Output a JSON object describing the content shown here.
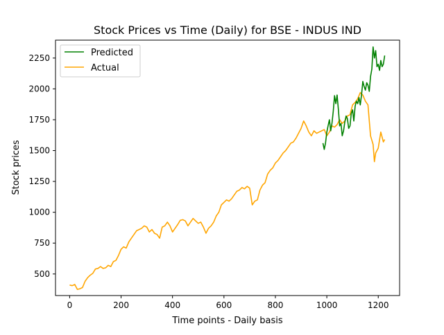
{
  "chart_data": {
    "type": "line",
    "title": "Stock Prices vs Time (Daily) for BSE - INDUS IND",
    "xlabel": "Time points - Daily basis",
    "ylabel": "Stock prices",
    "xlim": [
      -55,
      1283
    ],
    "ylim": [
      325,
      2395
    ],
    "xticks": [
      0,
      200,
      400,
      600,
      800,
      1000,
      1200
    ],
    "yticks": [
      500,
      750,
      1000,
      1250,
      1500,
      1750,
      2000,
      2250
    ],
    "grid": false,
    "legend_position": "top-left",
    "series": [
      {
        "name": "Predicted",
        "color": "#008000",
        "x": [
          985,
          990,
          995,
          1000,
          1005,
          1010,
          1015,
          1020,
          1025,
          1030,
          1035,
          1040,
          1045,
          1050,
          1055,
          1060,
          1065,
          1070,
          1075,
          1080,
          1085,
          1090,
          1095,
          1100,
          1105,
          1110,
          1115,
          1120,
          1125,
          1130,
          1135,
          1140,
          1145,
          1150,
          1155,
          1160,
          1165,
          1170,
          1175,
          1180,
          1185,
          1190,
          1195,
          1200,
          1205,
          1210,
          1215,
          1220,
          1225
        ],
        "values": [
          1560,
          1510,
          1560,
          1650,
          1700,
          1750,
          1660,
          1720,
          1820,
          1945,
          1880,
          1950,
          1830,
          1700,
          1720,
          1620,
          1660,
          1730,
          1780,
          1760,
          1680,
          1700,
          1800,
          1830,
          1740,
          1860,
          1900,
          1880,
          1930,
          1870,
          1950,
          2060,
          2020,
          1990,
          2050,
          2030,
          1980,
          2100,
          2160,
          2340,
          2250,
          2310,
          2180,
          2200,
          2150,
          2230,
          2180,
          2200,
          2270
        ]
      },
      {
        "name": "Actual",
        "color": "#FFA500",
        "x": [
          0,
          10,
          20,
          30,
          40,
          50,
          60,
          70,
          80,
          90,
          100,
          110,
          120,
          130,
          140,
          150,
          160,
          170,
          180,
          190,
          200,
          210,
          220,
          230,
          240,
          250,
          260,
          270,
          280,
          290,
          300,
          310,
          320,
          330,
          340,
          350,
          360,
          370,
          380,
          390,
          400,
          410,
          420,
          430,
          440,
          450,
          460,
          470,
          480,
          490,
          500,
          510,
          520,
          530,
          540,
          550,
          560,
          570,
          580,
          590,
          600,
          610,
          620,
          630,
          640,
          650,
          660,
          670,
          680,
          690,
          700,
          710,
          720,
          730,
          740,
          750,
          760,
          770,
          780,
          790,
          800,
          810,
          820,
          830,
          840,
          850,
          860,
          870,
          880,
          890,
          900,
          910,
          920,
          930,
          940,
          950,
          960,
          970,
          980,
          990,
          1000,
          1010,
          1020,
          1030,
          1040,
          1050,
          1060,
          1070,
          1080,
          1090,
          1100,
          1110,
          1120,
          1130,
          1140,
          1150,
          1160,
          1170,
          1180,
          1185,
          1190,
          1200,
          1210,
          1220,
          1225
        ],
        "values": [
          410,
          405,
          415,
          375,
          380,
          390,
          440,
          470,
          490,
          505,
          540,
          545,
          560,
          545,
          550,
          570,
          560,
          600,
          610,
          650,
          700,
          720,
          710,
          760,
          790,
          820,
          850,
          860,
          870,
          890,
          880,
          840,
          860,
          830,
          820,
          790,
          880,
          890,
          920,
          890,
          840,
          870,
          900,
          935,
          940,
          930,
          890,
          920,
          950,
          930,
          910,
          920,
          880,
          830,
          870,
          890,
          920,
          970,
          1000,
          1060,
          1080,
          1100,
          1090,
          1110,
          1140,
          1170,
          1180,
          1200,
          1190,
          1210,
          1195,
          1060,
          1090,
          1100,
          1180,
          1220,
          1240,
          1310,
          1340,
          1360,
          1400,
          1420,
          1450,
          1480,
          1500,
          1530,
          1560,
          1570,
          1600,
          1640,
          1680,
          1740,
          1700,
          1650,
          1620,
          1660,
          1640,
          1650,
          1660,
          1670,
          1620,
          1650,
          1700,
          1690,
          1710,
          1750,
          1720,
          1740,
          1780,
          1790,
          1870,
          1890,
          1920,
          1970,
          1950,
          1900,
          1870,
          1620,
          1550,
          1410,
          1480,
          1520,
          1650,
          1570,
          1590
        ]
      }
    ]
  }
}
